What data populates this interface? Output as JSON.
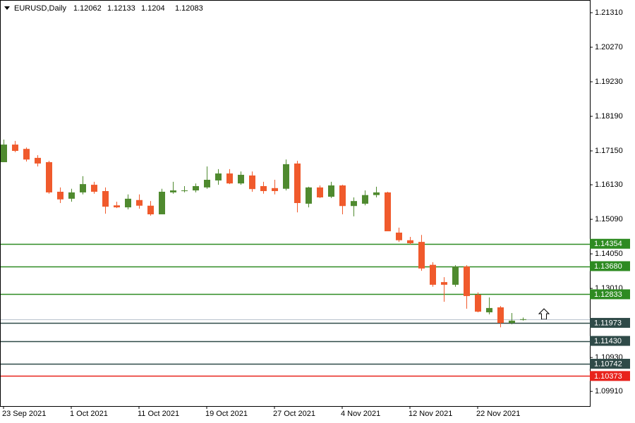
{
  "chart_data": {
    "type": "candlestick",
    "title": "EURUSD,Daily",
    "categories": [
      "23 Sep 2021",
      null,
      null,
      null,
      null,
      null,
      "1 Oct 2021",
      null,
      null,
      null,
      null,
      null,
      "11 Oct 2021",
      null,
      null,
      null,
      null,
      null,
      "19 Oct 2021",
      null,
      null,
      null,
      null,
      null,
      "27 Oct 2021",
      null,
      null,
      null,
      null,
      null,
      "4 Nov 2021",
      null,
      null,
      null,
      null,
      null,
      "12 Nov 2021",
      null,
      null,
      null,
      null,
      null,
      "22 Nov 2021",
      null,
      null,
      null,
      null
    ],
    "open": [
      1.1681,
      1.1734,
      1.1721,
      1.1694,
      1.1681,
      1.1592,
      1.1571,
      1.159,
      1.1613,
      1.1594,
      1.1551,
      1.1545,
      1.1567,
      1.155,
      1.1524,
      1.159,
      1.1594,
      1.1596,
      1.1605,
      1.1626,
      1.1647,
      1.1617,
      1.1641,
      1.1609,
      1.1603,
      1.1601,
      1.1677,
      1.1556,
      1.1605,
      1.1577,
      1.1611,
      1.1549,
      1.1556,
      1.1582,
      1.159,
      1.1469,
      1.1446,
      1.1441,
      1.1372,
      1.132,
      1.1312,
      1.1367,
      1.1282,
      1.1229,
      1.1244,
      1.1197,
      1.12062
    ],
    "high": [
      1.1749,
      1.1745,
      1.1725,
      1.1702,
      1.1685,
      1.1605,
      1.1601,
      1.1639,
      1.1622,
      1.1605,
      1.1562,
      1.1584,
      1.1584,
      1.1564,
      1.1601,
      1.1622,
      1.1609,
      1.1617,
      1.1668,
      1.166,
      1.166,
      1.1653,
      1.1653,
      1.1622,
      1.1628,
      1.1689,
      1.1685,
      1.1607,
      1.1611,
      1.1622,
      1.1613,
      1.1575,
      1.1596,
      1.1607,
      1.1592,
      1.1484,
      1.1456,
      1.1462,
      1.138,
      1.1335,
      1.1371,
      1.1371,
      1.1289,
      1.1274,
      1.1248,
      1.1227,
      1.12133
    ],
    "low": [
      1.1681,
      1.1711,
      1.1683,
      1.1668,
      1.1586,
      1.1558,
      1.1562,
      1.1584,
      1.1586,
      1.1526,
      1.1543,
      1.1539,
      1.1541,
      1.152,
      1.1524,
      1.1586,
      1.159,
      1.159,
      1.1601,
      1.1613,
      1.1615,
      1.1613,
      1.1592,
      1.1586,
      1.1584,
      1.1596,
      1.153,
      1.1545,
      1.1573,
      1.1573,
      1.1524,
      1.1518,
      1.1551,
      1.1575,
      1.1473,
      1.1441,
      1.1433,
      1.1354,
      1.1306,
      1.1261,
      1.1306,
      1.124,
      1.1229,
      1.1223,
      1.1184,
      1.1193,
      1.1204
    ],
    "close": [
      1.1734,
      1.1715,
      1.1689,
      1.1677,
      1.159,
      1.1569,
      1.159,
      1.1615,
      1.1592,
      1.1547,
      1.1545,
      1.1571,
      1.155,
      1.1524,
      1.1592,
      1.1596,
      1.1596,
      1.1609,
      1.1628,
      1.1647,
      1.1617,
      1.1643,
      1.16,
      1.1594,
      1.1594,
      1.1675,
      1.1558,
      1.1605,
      1.1575,
      1.1611,
      1.1549,
      1.1564,
      1.1582,
      1.159,
      1.1473,
      1.1446,
      1.1437,
      1.1361,
      1.1312,
      1.1312,
      1.1367,
      1.1278,
      1.1231,
      1.1242,
      1.1197,
      1.1204,
      1.12083
    ],
    "up_color": "#4f8a2f",
    "down_color": "#f05a2c",
    "ylim": [
      1.09489,
      1.21692
    ],
    "yticks": [
      {
        "value": 1.2131,
        "label": "1.21310"
      },
      {
        "value": 1.2027,
        "label": "1.20270"
      },
      {
        "value": 1.1923,
        "label": "1.19230"
      },
      {
        "value": 1.1819,
        "label": "1.18190"
      },
      {
        "value": 1.1715,
        "label": "1.17150"
      },
      {
        "value": 1.1613,
        "label": "1.16130"
      },
      {
        "value": 1.1509,
        "label": "1.15090"
      },
      {
        "value": 1.1405,
        "label": "1.14050"
      },
      {
        "value": 1.1301,
        "label": "1.13010"
      },
      {
        "value": 1.1093,
        "label": "1.10930"
      },
      {
        "value": 1.0991,
        "label": "1.09910"
      }
    ],
    "levels": {
      "values": [
        1.14354,
        1.1368,
        1.12833,
        1.11973,
        1.1143,
        1.10742,
        1.10373
      ],
      "value_labels": [
        "1.14354",
        "1.13680",
        "1.12833",
        "1.11973",
        "1.11430",
        "1.10742",
        "1.10373"
      ],
      "colors": [
        "#2e8b22",
        "#2e8b22",
        "#2e8b22",
        "#2f4a48",
        "#2f4a48",
        "#2f4a48",
        "#e8231c"
      ]
    },
    "bid_line_color": "#b8c2cc"
  }
}
